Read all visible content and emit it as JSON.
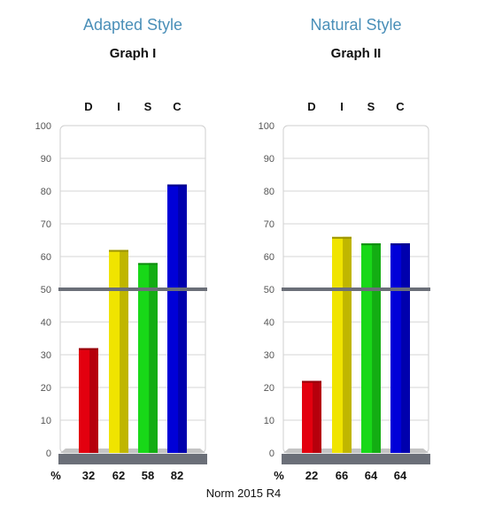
{
  "footer": "Norm 2015 R4",
  "percent_symbol": "%",
  "colors": {
    "D": "#e3000f",
    "I": "#f0e400",
    "S": "#18d818",
    "C": "#0000d8",
    "norm_line": "#6b6f78",
    "style_title": "#4a8fb8"
  },
  "chart_data": [
    {
      "type": "bar",
      "style_title": "Adapted Style",
      "title": "Graph I",
      "categories": [
        "D",
        "I",
        "S",
        "C"
      ],
      "values": [
        32,
        62,
        58,
        82
      ],
      "value_labels": [
        "32",
        "62",
        "58",
        "82"
      ],
      "ylim": [
        0,
        100
      ],
      "yticks": [
        0,
        10,
        20,
        30,
        40,
        50,
        60,
        70,
        80,
        90,
        100
      ],
      "reference_line": 50,
      "grid": true
    },
    {
      "type": "bar",
      "style_title": "Natural Style",
      "title": "Graph II",
      "categories": [
        "D",
        "I",
        "S",
        "C"
      ],
      "values": [
        22,
        66,
        64,
        64
      ],
      "value_labels": [
        "22",
        "66",
        "64",
        "64"
      ],
      "ylim": [
        0,
        100
      ],
      "yticks": [
        0,
        10,
        20,
        30,
        40,
        50,
        60,
        70,
        80,
        90,
        100
      ],
      "reference_line": 50,
      "grid": true
    }
  ]
}
